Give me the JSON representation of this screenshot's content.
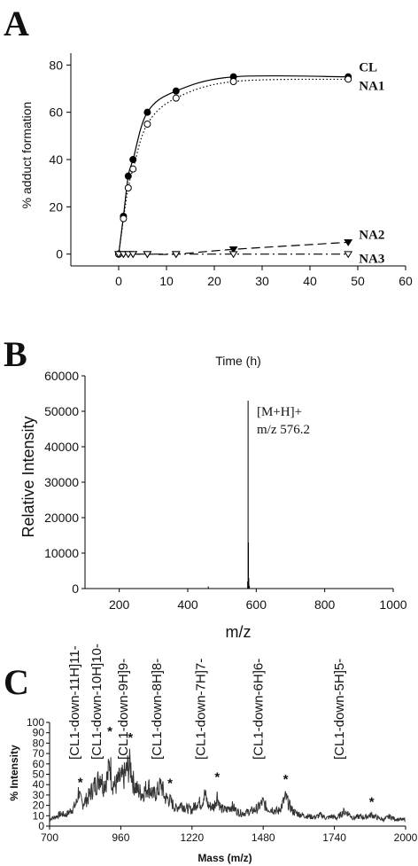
{
  "chart_data": [
    {
      "panel": "A",
      "type": "line",
      "xlabel": "Time (h)",
      "ylabel": "% adduct formation",
      "xlim": [
        -10,
        60
      ],
      "ylim": [
        -5,
        85
      ],
      "xticks": [
        0,
        10,
        20,
        30,
        40,
        50,
        60
      ],
      "yticks": [
        0,
        20,
        40,
        60,
        80
      ],
      "series": [
        {
          "name": "CL",
          "marker": "filled-circle",
          "line": "solid",
          "x": [
            0,
            1,
            2,
            3,
            6,
            12,
            24,
            48
          ],
          "y": [
            0,
            16,
            33,
            40,
            60,
            69,
            75,
            75
          ]
        },
        {
          "name": "NA1",
          "marker": "open-circle",
          "line": "dotted",
          "x": [
            0,
            1,
            2,
            3,
            6,
            12,
            24,
            48
          ],
          "y": [
            0,
            15,
            28,
            36,
            55,
            66,
            73,
            74
          ]
        },
        {
          "name": "NA2",
          "marker": "filled-triangle-down",
          "line": "dashed",
          "x": [
            0,
            1,
            2,
            3,
            6,
            12,
            24,
            48
          ],
          "y": [
            0,
            0,
            0,
            0,
            0,
            0,
            2,
            5
          ]
        },
        {
          "name": "NA3",
          "marker": "open-triangle-down",
          "line": "dash-dot",
          "x": [
            0,
            1,
            2,
            3,
            6,
            12,
            24,
            48
          ],
          "y": [
            0,
            0,
            0,
            0,
            0,
            0,
            0,
            0
          ]
        }
      ]
    },
    {
      "panel": "B",
      "type": "line",
      "xlabel": "m/z",
      "ylabel": "Relative Intensity",
      "xlim": [
        100,
        1000
      ],
      "ylim": [
        0,
        60000
      ],
      "xticks": [
        200,
        400,
        600,
        800,
        1000
      ],
      "yticks": [
        0,
        10000,
        20000,
        30000,
        40000,
        50000,
        60000
      ],
      "peaks": [
        {
          "mz": 460,
          "intensity": 600
        },
        {
          "mz": 575,
          "intensity": 2000
        },
        {
          "mz": 576.2,
          "intensity": 53000
        },
        {
          "mz": 577.2,
          "intensity": 13000
        },
        {
          "mz": 578.2,
          "intensity": 3000
        },
        {
          "mz": 580,
          "intensity": 800
        }
      ],
      "annotation": [
        "[M+H]+",
        "m/z 576.2"
      ]
    },
    {
      "panel": "C",
      "type": "line",
      "xlabel": "Mass (m/z)",
      "ylabel": "% Intensity",
      "xlim": [
        700,
        2000
      ],
      "ylim": [
        0,
        100
      ],
      "xticks": [
        700,
        960,
        1220,
        1480,
        1740,
        2000
      ],
      "yticks": [
        0,
        10,
        20,
        30,
        40,
        50,
        60,
        70,
        80,
        90,
        100
      ],
      "ions": [
        {
          "label": "[CL1-down-11H]11-",
          "mz": 806
        },
        {
          "label": "[CL1-down-10H]10-",
          "mz": 887
        },
        {
          "label": "[CL1-down-9H]9-",
          "mz": 985
        },
        {
          "label": "[CL1-down-8H]8-",
          "mz": 1108
        },
        {
          "label": "[CL1-down-7H]7-",
          "mz": 1267
        },
        {
          "label": "[CL1-down-6H]6-",
          "mz": 1478
        },
        {
          "label": "[CL1-down-5H]5-",
          "mz": 1774
        }
      ],
      "star_mz": [
        812,
        920,
        995,
        1140,
        1312,
        1562,
        1876
      ],
      "profile": [
        [
          700,
          9
        ],
        [
          720,
          11
        ],
        [
          740,
          15
        ],
        [
          760,
          14
        ],
        [
          780,
          20
        ],
        [
          790,
          24
        ],
        [
          800,
          30
        ],
        [
          806,
          45
        ],
        [
          812,
          33
        ],
        [
          820,
          28
        ],
        [
          840,
          35
        ],
        [
          860,
          48
        ],
        [
          875,
          55
        ],
        [
          887,
          65
        ],
        [
          895,
          50
        ],
        [
          905,
          58
        ],
        [
          912,
          60
        ],
        [
          920,
          82
        ],
        [
          928,
          55
        ],
        [
          940,
          50
        ],
        [
          955,
          58
        ],
        [
          970,
          60
        ],
        [
          985,
          72
        ],
        [
          995,
          76
        ],
        [
          1005,
          55
        ],
        [
          1020,
          45
        ],
        [
          1040,
          40
        ],
        [
          1060,
          50
        ],
        [
          1080,
          38
        ],
        [
          1095,
          44
        ],
        [
          1108,
          52
        ],
        [
          1120,
          36
        ],
        [
          1140,
          32
        ],
        [
          1160,
          22
        ],
        [
          1180,
          27
        ],
        [
          1200,
          22
        ],
        [
          1220,
          20
        ],
        [
          1240,
          30
        ],
        [
          1255,
          28
        ],
        [
          1267,
          40
        ],
        [
          1280,
          25
        ],
        [
          1300,
          24
        ],
        [
          1312,
          38
        ],
        [
          1325,
          22
        ],
        [
          1345,
          20
        ],
        [
          1365,
          25
        ],
        [
          1385,
          18
        ],
        [
          1400,
          16
        ],
        [
          1420,
          17
        ],
        [
          1440,
          19
        ],
        [
          1460,
          22
        ],
        [
          1478,
          30
        ],
        [
          1495,
          22
        ],
        [
          1515,
          21
        ],
        [
          1535,
          18
        ],
        [
          1550,
          27
        ],
        [
          1562,
          36
        ],
        [
          1575,
          26
        ],
        [
          1590,
          18
        ],
        [
          1610,
          15
        ],
        [
          1630,
          13
        ],
        [
          1650,
          12
        ],
        [
          1670,
          11
        ],
        [
          1690,
          14
        ],
        [
          1710,
          10
        ],
        [
          1730,
          12
        ],
        [
          1750,
          10
        ],
        [
          1774,
          18
        ],
        [
          1790,
          16
        ],
        [
          1810,
          10
        ],
        [
          1830,
          12
        ],
        [
          1850,
          11
        ],
        [
          1876,
          14
        ],
        [
          1900,
          10
        ],
        [
          1920,
          8
        ],
        [
          1940,
          12
        ],
        [
          1960,
          9
        ],
        [
          1980,
          8
        ],
        [
          2000,
          8
        ]
      ]
    }
  ]
}
